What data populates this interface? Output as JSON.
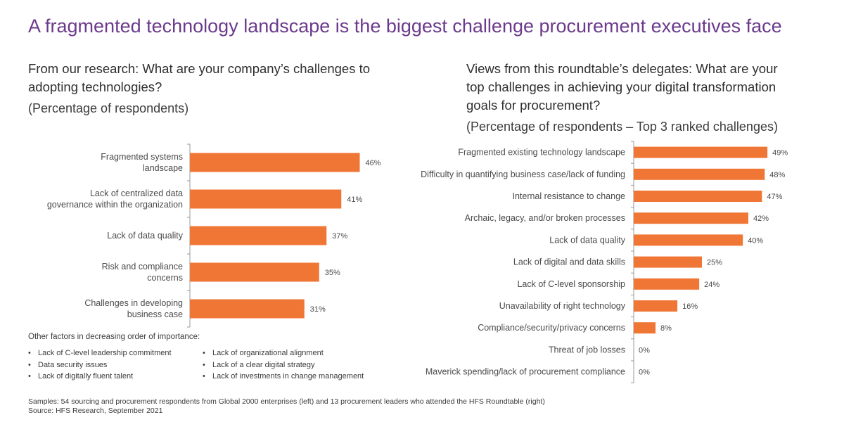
{
  "title": "A fragmented technology landscape is the biggest challenge procurement executives face",
  "left_panel": {
    "question": "From our research: What are your company’s challenges to adopting technologies?",
    "subtitle": "(Percentage of respondents)",
    "other_factors_heading": "Other factors in decreasing order of importance:",
    "other_factors_col1": [
      "Lack of C-level leadership commitment",
      "Data security issues",
      "Lack of digitally fluent talent"
    ],
    "other_factors_col2": [
      "Lack of organizational alignment",
      "Lack of a clear digital strategy",
      "Lack of investments in change management"
    ]
  },
  "right_panel": {
    "question": "Views from this roundtable’s delegates: What are your top challenges in achieving your digital transformation goals for procurement?",
    "subtitle": "(Percentage of respondents – Top 3 ranked challenges)"
  },
  "footer": {
    "samples": "Samples: 54 sourcing and procurement respondents from Global 2000 enterprises (left) and 13 procurement leaders who attended the HFS Roundtable (right)",
    "source": "Source: HFS Research, September 2021"
  },
  "colors": {
    "bar": "#f07636",
    "title": "#6b3a8c",
    "axis": "#9a9a9a"
  },
  "chart_data": [
    {
      "type": "bar",
      "orientation": "horizontal",
      "categories": [
        [
          "Fragmented systems",
          "landscape"
        ],
        [
          "Lack of centralized data",
          "governance within the organization"
        ],
        [
          "Lack of data quality"
        ],
        [
          "Risk and compliance",
          "concerns"
        ],
        [
          "Challenges in developing",
          "business case"
        ]
      ],
      "values": [
        46,
        41,
        37,
        35,
        31
      ],
      "value_labels": [
        "46%",
        "41%",
        "37%",
        "35%",
        "31%"
      ],
      "xlim": [
        0,
        60
      ]
    },
    {
      "type": "bar",
      "orientation": "horizontal",
      "categories": [
        [
          "Fragmented existing technology landscape"
        ],
        [
          "Difficulty in quantifying business case/lack of funding"
        ],
        [
          "Internal resistance to change"
        ],
        [
          "Archaic, legacy, and/or broken processes"
        ],
        [
          "Lack of data quality"
        ],
        [
          "Lack of digital and data skills"
        ],
        [
          "Lack of C-level sponsorship"
        ],
        [
          "Unavailability of right technology"
        ],
        [
          "Compliance/security/privacy concerns"
        ],
        [
          "Threat of job losses"
        ],
        [
          "Maverick spending/lack of procurement compliance"
        ]
      ],
      "values": [
        49,
        48,
        47,
        42,
        40,
        25,
        24,
        16,
        8,
        0,
        0
      ],
      "value_labels": [
        "49%",
        "48%",
        "47%",
        "42%",
        "40%",
        "25%",
        "24%",
        "16%",
        "8%",
        "0%",
        "0%"
      ],
      "xlim": [
        0,
        50
      ]
    }
  ]
}
